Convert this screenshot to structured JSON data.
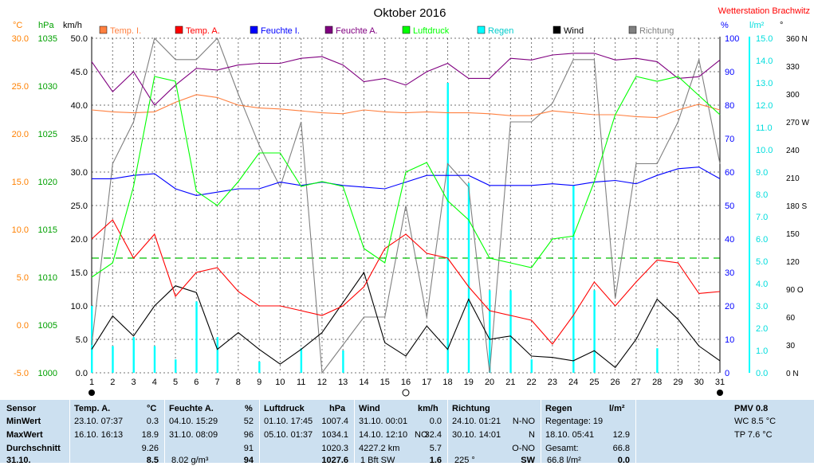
{
  "chart_data": {
    "type": "line",
    "title": "Oktober 2016",
    "station": "Wetterstation Brachwitz",
    "colors": {
      "temp_i": "#ff8040",
      "temp_a": "#ff0000",
      "hum_i": "#0000ff",
      "hum_a": "#800080",
      "pressure": "#00ff00",
      "rain": "#00ffff",
      "wind": "#000000",
      "direction": "#808080",
      "temp_axis": "#ff8000",
      "pressure_axis": "#00a000",
      "rain_axis": "#00dddd"
    },
    "legend": [
      {
        "label": "Temp. I.",
        "key": "temp_i"
      },
      {
        "label": "Temp. A.",
        "key": "temp_a"
      },
      {
        "label": "Feuchte I.",
        "key": "hum_i"
      },
      {
        "label": "Feuchte A.",
        "key": "hum_a"
      },
      {
        "label": "Luftdruck",
        "key": "pressure"
      },
      {
        "label": "Regen",
        "key": "rain"
      },
      {
        "label": "Wind",
        "key": "wind"
      },
      {
        "label": "Richtung",
        "key": "direction"
      }
    ],
    "axes": {
      "temp": {
        "unit": "°C",
        "min": -5,
        "max": 30,
        "ticks": [
          "30.0",
          "25.0",
          "20.0",
          "15.0",
          "10.0",
          "5.0",
          "0.0",
          "-5.0"
        ]
      },
      "pressure": {
        "unit": "hPa",
        "min": 1000,
        "max": 1035,
        "ticks": [
          "1035",
          "1030",
          "1025",
          "1020",
          "1015",
          "1010",
          "1005",
          "1000"
        ]
      },
      "wind": {
        "unit": "km/h",
        "min": 0,
        "max": 50,
        "ticks": [
          "50.0",
          "45.0",
          "40.0",
          "35.0",
          "30.0",
          "25.0",
          "20.0",
          "15.0",
          "10.0",
          "5.0",
          "0.0"
        ]
      },
      "humidity": {
        "unit": "%",
        "min": 0,
        "max": 100,
        "ticks": [
          "100",
          "90",
          "80",
          "70",
          "60",
          "50",
          "40",
          "30",
          "20",
          "10",
          "0"
        ]
      },
      "rain": {
        "unit": "l/m²",
        "min": 0,
        "max": 15,
        "ticks": [
          "15.0",
          "14.0",
          "13.0",
          "12.0",
          "11.0",
          "10.0",
          "9.0",
          "8.0",
          "7.0",
          "6.0",
          "5.0",
          "4.0",
          "3.0",
          "2.0",
          "1.0",
          "0.0"
        ]
      },
      "direction": {
        "unit": "°",
        "min": 0,
        "max": 360,
        "ticks": [
          "360 N",
          "330",
          "300",
          "270 W",
          "240",
          "210",
          "180 S",
          "150",
          "120",
          "90 O",
          "60",
          "30",
          "0 N"
        ]
      }
    },
    "x": {
      "min": 1,
      "max": 31,
      "ticks": [
        "1",
        "2",
        "3",
        "4",
        "5",
        "6",
        "7",
        "8",
        "9",
        "10",
        "11",
        "12",
        "13",
        "14",
        "15",
        "16",
        "17",
        "18",
        "19",
        "20",
        "21",
        "22",
        "23",
        "24",
        "25",
        "26",
        "27",
        "28",
        "29",
        "30",
        "31"
      ]
    },
    "moon": {
      "new": [
        1,
        31
      ],
      "full": [
        16
      ]
    },
    "pressure_mean": 1012,
    "series": {
      "temp_i": [
        22.5,
        22.3,
        22.2,
        22.3,
        23.3,
        24.1,
        23.8,
        23.0,
        22.7,
        22.6,
        22.4,
        22.2,
        22.1,
        22.5,
        22.3,
        22.2,
        22.3,
        22.2,
        22.2,
        22.1,
        21.9,
        21.9,
        22.4,
        22.2,
        22.0,
        22.0,
        21.8,
        21.7,
        22.5,
        23.1,
        22.5
      ],
      "temp_a": [
        9.0,
        11.0,
        7.0,
        9.5,
        3.0,
        5.5,
        6.0,
        3.5,
        2.0,
        2.0,
        1.5,
        1.0,
        2.0,
        4.0,
        8.0,
        9.5,
        7.5,
        7.0,
        4.0,
        1.5,
        1.0,
        0.5,
        -2.0,
        1.0,
        4.5,
        2.0,
        4.5,
        6.8,
        6.5,
        3.3,
        3.5
      ],
      "hum_i": [
        58,
        58,
        59,
        59.5,
        55,
        53,
        54,
        55,
        55,
        57,
        56,
        57,
        56,
        55.5,
        55,
        57,
        59,
        59,
        59,
        56,
        56,
        56,
        56.5,
        56,
        57,
        57.5,
        56.5,
        59,
        61,
        61.5,
        58
      ],
      "hum_a": [
        93,
        84,
        90,
        80,
        86,
        91,
        90.5,
        92,
        92.5,
        92.5,
        94,
        94.5,
        92,
        87,
        88,
        86,
        90,
        92.5,
        88,
        88,
        94,
        93.5,
        95,
        95.5,
        95.5,
        93.5,
        94,
        93,
        88,
        88.5,
        93.5
      ],
      "pressure": [
        1010.0,
        1011.5,
        1019.5,
        1031.0,
        1030.5,
        1019.0,
        1017.5,
        1020.0,
        1023.0,
        1023.0,
        1019.5,
        1020.0,
        1019.5,
        1013.0,
        1011.5,
        1021.0,
        1022.0,
        1018.0,
        1016.0,
        1012.0,
        1011.5,
        1011.0,
        1014.0,
        1014.3,
        1020.0,
        1027.0,
        1031.0,
        1030.5,
        1031.0,
        1029.0,
        1027.0
      ],
      "wind": [
        3.5,
        8.5,
        5.5,
        10,
        13,
        12,
        3.5,
        6,
        3.5,
        1.3,
        3.5,
        6,
        10.5,
        15,
        4.5,
        2.5,
        7,
        3.5,
        11,
        5,
        5.5,
        2.5,
        2.3,
        1.8,
        3.3,
        0.8,
        5,
        11,
        8,
        4,
        1.8
      ],
      "direction": [
        30,
        225,
        270,
        360,
        337,
        337,
        360,
        300,
        245,
        200,
        270,
        0,
        30,
        60,
        60,
        180,
        60,
        225,
        200,
        0,
        270,
        270,
        290,
        337,
        337,
        80,
        225,
        225,
        270,
        337,
        225
      ],
      "rain": [
        3.0,
        1.2,
        1.6,
        1.2,
        0.6,
        3.2,
        1.6,
        0,
        0.5,
        0,
        1.1,
        0,
        1.0,
        0,
        0,
        0,
        0,
        13.0,
        8.5,
        3.7,
        3.7,
        0.6,
        0,
        8.4,
        3.7,
        0,
        0,
        1.1,
        0,
        0,
        0
      ]
    }
  },
  "panel": {
    "headers": {
      "sensor": "Sensor",
      "temp": "Temp. A.",
      "temp_unit": "°C",
      "hum": "Feuchte A.",
      "hum_unit": "%",
      "pressure": "Luftdruck",
      "pressure_unit": "hPa",
      "wind": "Wind",
      "wind_unit": "km/h",
      "dir": "Richtung",
      "rain": "Regen",
      "rain_unit": "l/m²",
      "pmv": "PMV 0.8"
    },
    "row_labels": [
      "MinWert",
      "MaxWert",
      "Durchschnitt",
      "31.10."
    ],
    "temp": {
      "min": {
        "time": "23.10.  07:37",
        "val": "0.3"
      },
      "max": {
        "time": "16.10.  16:13",
        "val": "18.9"
      },
      "avg": "9.26",
      "cur": "8.5"
    },
    "hum": {
      "min": {
        "time": "04.10.  15:29",
        "val": "52"
      },
      "max": {
        "time": "31.10.  08:09",
        "val": "96"
      },
      "avg": "91",
      "cur_extra": "8.02 g/m³",
      "cur": "94"
    },
    "pressure": {
      "min": {
        "time": "01.10.  17:45",
        "val": "1007.4"
      },
      "max": {
        "time": "05.10.  01:37",
        "val": "1034.1"
      },
      "avg": "1020.3",
      "cur": "1027.6"
    },
    "wind": {
      "min": {
        "time": "31.10.  00:01",
        "val": "0.0"
      },
      "max": {
        "time": "14.10.  12:10",
        "val": "32.4"
      },
      "max_dir": "NO",
      "avg_dist": "4227.2 km",
      "avg": "5.7",
      "cur_extra": "1 Bft SW",
      "cur": "1.6"
    },
    "dir": {
      "min": {
        "time": "24.10.  01:21",
        "val": "N-NO"
      },
      "max": {
        "time": "30.10.  14:01",
        "val": "N"
      },
      "avg": "O-NO",
      "cur_deg": "225 °",
      "cur": "SW"
    },
    "rain": {
      "days_label": "Regentage: 19",
      "max": {
        "time": "18.10.  05:41",
        "val": "12.9"
      },
      "total_label": "Gesamt:",
      "total": "66.8",
      "cur_extra": "66.8 l/m²",
      "cur": "0.0"
    },
    "pmv": {
      "wc": "WC 8.5 °C",
      "tp": "TP 7.6 °C"
    }
  }
}
